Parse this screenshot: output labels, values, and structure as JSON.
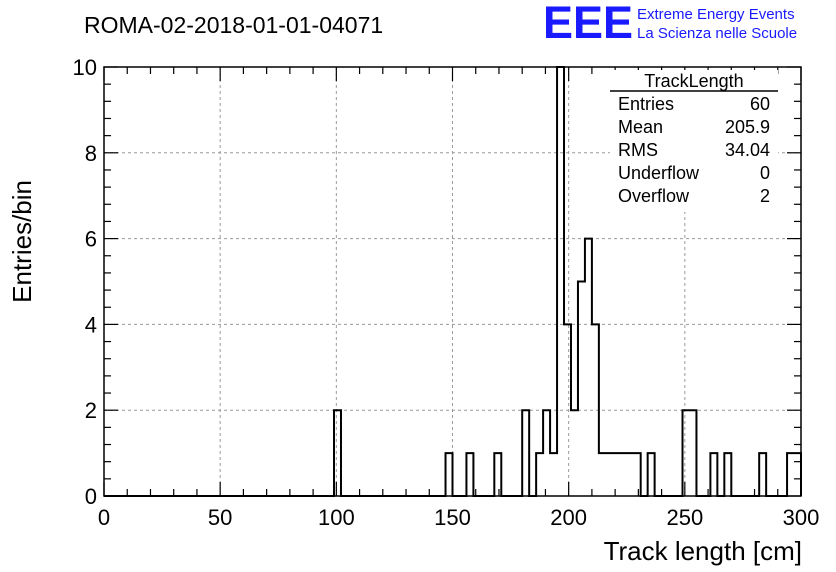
{
  "chart_data": {
    "type": "bar",
    "title": "ROMA-02-2018-01-01-04071",
    "xlabel": "Track length [cm]",
    "ylabel": "Entries/bin",
    "xlim": [
      0,
      300
    ],
    "ylim": [
      0,
      10
    ],
    "x_ticks": [
      "0",
      "50",
      "100",
      "150",
      "200",
      "250",
      "300"
    ],
    "y_ticks": [
      "0",
      "2",
      "4",
      "6",
      "8",
      "10"
    ],
    "grid": true,
    "bin_width": 3,
    "bin_edges_start": [
      99,
      147,
      156,
      168,
      180,
      186,
      189,
      192,
      195,
      198,
      201,
      204,
      207,
      210,
      213,
      216,
      219,
      222,
      225,
      228,
      234,
      249,
      252,
      261,
      267,
      282,
      294,
      297
    ],
    "values": [
      2,
      1,
      1,
      1,
      2,
      1,
      2,
      1,
      10,
      4,
      2,
      5,
      6,
      4,
      1,
      1,
      1,
      1,
      1,
      1,
      1,
      2,
      2,
      1,
      1,
      1,
      1,
      1
    ],
    "stats_box": {
      "title": "TrackLength",
      "rows": [
        {
          "label": "Entries",
          "value": "60"
        },
        {
          "label": "Mean",
          "value": "205.9"
        },
        {
          "label": "RMS",
          "value": "34.04"
        },
        {
          "label": "Underflow",
          "value": "0"
        },
        {
          "label": "Overflow",
          "value": "2"
        }
      ]
    }
  },
  "logo": {
    "mark": "EEE",
    "line1": "Extreme Energy Events",
    "line2": "La Scienza nelle Scuole",
    "color": "#1a1aff"
  }
}
